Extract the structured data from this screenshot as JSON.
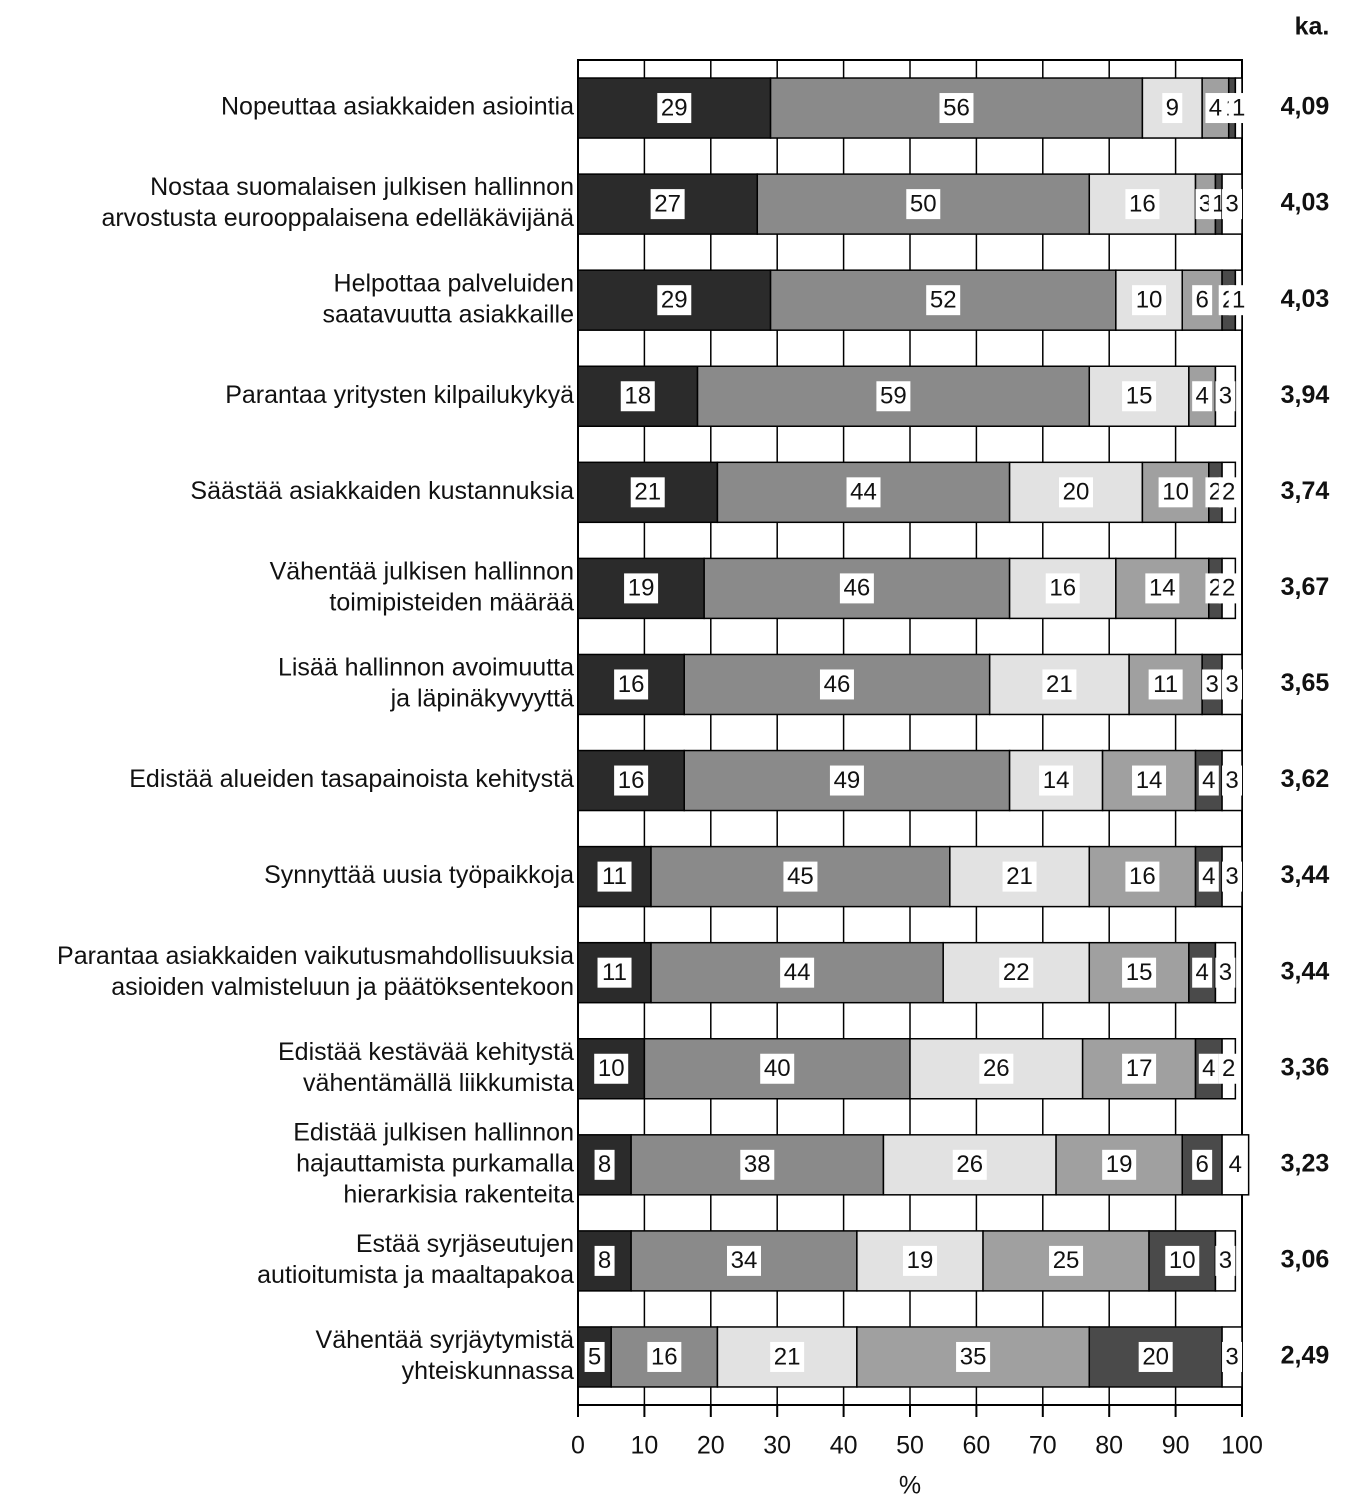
{
  "chart_data": {
    "type": "stacked_bar_horizontal",
    "categories": [
      [
        "Nopeuttaa asiakkaiden asiointia"
      ],
      [
        "Nostaa suomalaisen julkisen hallinnon",
        "arvostusta eurooppalaisena edelläkävijänä"
      ],
      [
        "Helpottaa palveluiden",
        "saatavuutta asiakkaille"
      ],
      [
        "Parantaa yritysten kilpailukykyä"
      ],
      [
        "Säästää asiakkaiden kustannuksia"
      ],
      [
        "Vähentää julkisen hallinnon",
        "toimipisteiden määrää"
      ],
      [
        "Lisää hallinnon avoimuutta",
        "ja läpinäkyvyyttä"
      ],
      [
        "Edistää alueiden tasapainoista kehitystä"
      ],
      [
        "Synnyttää uusia työpaikkoja"
      ],
      [
        "Parantaa asiakkaiden vaikutusmahdollisuuksia",
        "asioiden valmisteluun ja päätöksentekoon"
      ],
      [
        "Edistää kestävää kehitystä",
        "vähentämällä liikkumista"
      ],
      [
        "Edistää julkisen hallinnon",
        "hajauttamista purkamalla",
        "hierarkisia rakenteita"
      ],
      [
        "Estää syrjäseutujen",
        "autioitumista ja maaltapakoa"
      ],
      [
        "Vähentää syrjäytymistä",
        "yhteiskunnassa"
      ]
    ],
    "series": [
      {
        "color": "#2b2b2b",
        "values": [
          29,
          27,
          29,
          18,
          21,
          19,
          16,
          16,
          11,
          11,
          10,
          8,
          8,
          5
        ]
      },
      {
        "color": "#8a8a8a",
        "values": [
          56,
          50,
          52,
          59,
          44,
          46,
          46,
          49,
          45,
          44,
          40,
          38,
          34,
          16
        ]
      },
      {
        "color": "#e2e2e2",
        "values": [
          9,
          16,
          10,
          15,
          20,
          16,
          21,
          14,
          21,
          22,
          26,
          26,
          19,
          21
        ]
      },
      {
        "color": "#a0a0a0",
        "values": [
          4,
          3,
          6,
          4,
          10,
          14,
          11,
          14,
          16,
          15,
          17,
          19,
          25,
          35
        ]
      },
      {
        "color": "#4a4a4a",
        "values": [
          1,
          1,
          2,
          null,
          2,
          2,
          3,
          4,
          4,
          4,
          4,
          6,
          10,
          20
        ]
      },
      {
        "color": "#ffffff",
        "values": [
          1,
          3,
          1,
          3,
          2,
          2,
          3,
          3,
          3,
          3,
          2,
          4,
          3,
          3
        ]
      }
    ],
    "means_header": "ka.",
    "means": [
      4.09,
      4.03,
      4.03,
      3.94,
      3.74,
      3.67,
      3.65,
      3.62,
      3.44,
      3.44,
      3.36,
      3.23,
      3.06,
      2.49
    ],
    "mean_labels": [
      "4,09",
      "4,03",
      "4,03",
      "3,94",
      "3,74",
      "3,67",
      "3,65",
      "3,62",
      "3,44",
      "3,44",
      "3,36",
      "3,23",
      "3,06",
      "2,49"
    ],
    "xlabel": "%",
    "xlim": [
      0,
      100
    ],
    "xticks": [
      0,
      10,
      20,
      30,
      40,
      50,
      60,
      70,
      80,
      90,
      100
    ],
    "grid": true
  }
}
